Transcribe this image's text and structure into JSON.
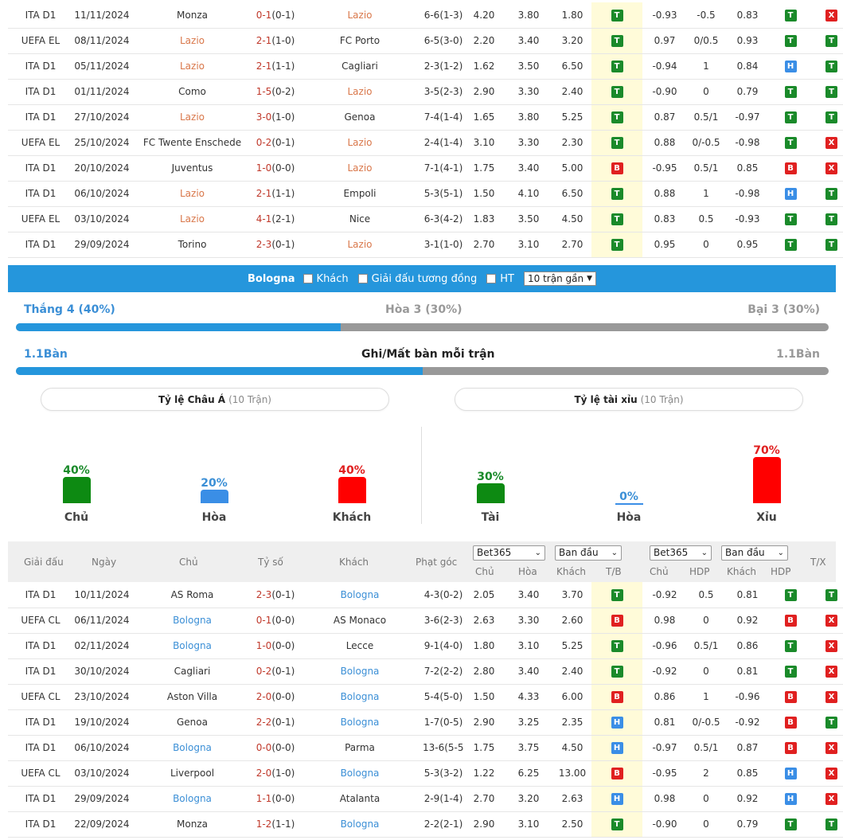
{
  "table1": {
    "rows": [
      {
        "league": "ITA D1",
        "date": "11/11/2024",
        "home": "Monza",
        "home_hl": false,
        "ft": "0-1",
        "ht": "(0-1)",
        "away": "Lazio",
        "away_hl": true,
        "corners": "6-6(1-3)",
        "o1": "4.20",
        "o2": "3.80",
        "o3": "1.80",
        "r1": "T",
        "h1": "-0.93",
        "h2": "-0.5",
        "h3": "0.83",
        "r2": "T",
        "r3": "X"
      },
      {
        "league": "UEFA EL",
        "date": "08/11/2024",
        "home": "Lazio",
        "home_hl": true,
        "ft": "2-1",
        "ht": "(1-0)",
        "away": "FC Porto",
        "away_hl": false,
        "corners": "6-5(3-0)",
        "o1": "2.20",
        "o2": "3.40",
        "o3": "3.20",
        "r1": "T",
        "h1": "0.97",
        "h2": "0/0.5",
        "h3": "0.93",
        "r2": "T",
        "r3": "T"
      },
      {
        "league": "ITA D1",
        "date": "05/11/2024",
        "home": "Lazio",
        "home_hl": true,
        "ft": "2-1",
        "ht": "(1-1)",
        "away": "Cagliari",
        "away_hl": false,
        "corners": "2-3(1-2)",
        "o1": "1.62",
        "o2": "3.50",
        "o3": "6.50",
        "r1": "T",
        "h1": "-0.94",
        "h2": "1",
        "h3": "0.84",
        "r2": "H",
        "r3": "T"
      },
      {
        "league": "ITA D1",
        "date": "01/11/2024",
        "home": "Como",
        "home_hl": false,
        "ft": "1-5",
        "ht": "(0-2)",
        "away": "Lazio",
        "away_hl": true,
        "corners": "3-5(2-3)",
        "o1": "2.90",
        "o2": "3.30",
        "o3": "2.40",
        "r1": "T",
        "h1": "-0.90",
        "h2": "0",
        "h3": "0.79",
        "r2": "T",
        "r3": "T"
      },
      {
        "league": "ITA D1",
        "date": "27/10/2024",
        "home": "Lazio",
        "home_hl": true,
        "ft": "3-0",
        "ht": "(1-0)",
        "away": "Genoa",
        "away_hl": false,
        "corners": "7-4(1-4)",
        "o1": "1.65",
        "o2": "3.80",
        "o3": "5.25",
        "r1": "T",
        "h1": "0.87",
        "h2": "0.5/1",
        "h3": "-0.97",
        "r2": "T",
        "r3": "T"
      },
      {
        "league": "UEFA EL",
        "date": "25/10/2024",
        "home": "FC Twente Enschede",
        "home_hl": false,
        "ft": "0-2",
        "ht": "(0-1)",
        "away": "Lazio",
        "away_hl": true,
        "corners": "2-4(1-4)",
        "o1": "3.10",
        "o2": "3.30",
        "o3": "2.30",
        "r1": "T",
        "h1": "0.88",
        "h2": "0/-0.5",
        "h3": "-0.98",
        "r2": "T",
        "r3": "X"
      },
      {
        "league": "ITA D1",
        "date": "20/10/2024",
        "home": "Juventus",
        "home_hl": false,
        "ft": "1-0",
        "ht": "(0-0)",
        "away": "Lazio",
        "away_hl": true,
        "corners": "7-1(4-1)",
        "o1": "1.75",
        "o2": "3.40",
        "o3": "5.00",
        "r1": "B",
        "h1": "-0.95",
        "h2": "0.5/1",
        "h3": "0.85",
        "r2": "B",
        "r3": "X"
      },
      {
        "league": "ITA D1",
        "date": "06/10/2024",
        "home": "Lazio",
        "home_hl": true,
        "ft": "2-1",
        "ht": "(1-1)",
        "away": "Empoli",
        "away_hl": false,
        "corners": "5-3(5-1)",
        "o1": "1.50",
        "o2": "4.10",
        "o3": "6.50",
        "r1": "T",
        "h1": "0.88",
        "h2": "1",
        "h3": "-0.98",
        "r2": "H",
        "r3": "T"
      },
      {
        "league": "UEFA EL",
        "date": "03/10/2024",
        "home": "Lazio",
        "home_hl": true,
        "ft": "4-1",
        "ht": "(2-1)",
        "away": "Nice",
        "away_hl": false,
        "corners": "6-3(4-2)",
        "o1": "1.83",
        "o2": "3.50",
        "o3": "4.50",
        "r1": "T",
        "h1": "0.83",
        "h2": "0.5",
        "h3": "-0.93",
        "r2": "T",
        "r3": "T"
      },
      {
        "league": "ITA D1",
        "date": "29/09/2024",
        "home": "Torino",
        "home_hl": false,
        "ft": "2-3",
        "ht": "(0-1)",
        "away": "Lazio",
        "away_hl": true,
        "corners": "3-1(1-0)",
        "o1": "2.70",
        "o2": "3.10",
        "o3": "2.70",
        "r1": "T",
        "h1": "0.95",
        "h2": "0",
        "h3": "0.95",
        "r2": "T",
        "r3": "T"
      }
    ]
  },
  "filter": {
    "team": "Bologna",
    "away_label": "Khách",
    "same_league_label": "Giải đấu tương đồng",
    "ht_label": "HT",
    "recent_select": "10 trận gần"
  },
  "summary": {
    "win": "Thắng 4 (40%)",
    "draw": "Hòa 3 (30%)",
    "loss": "Bại 3 (30%)",
    "win_fraction": 0.4,
    "goals_left": "1.1Bàn",
    "goals_title": "Ghi/Mất bàn mỗi trận",
    "goals_right": "1.1Bàn",
    "goals_fraction": 0.5
  },
  "asian": {
    "title": "Tỷ lệ Châu Á",
    "count": "(10 Trận)",
    "bars": [
      {
        "pct_text": "40%",
        "value": 40,
        "label": "Chủ",
        "color": "green"
      },
      {
        "pct_text": "20%",
        "value": 20,
        "label": "Hòa",
        "color": "blue"
      },
      {
        "pct_text": "40%",
        "value": 40,
        "label": "Khách",
        "color": "red"
      }
    ]
  },
  "overunder": {
    "title": "Tỷ lệ tài xỉu",
    "count": "(10 Trận)",
    "bars": [
      {
        "pct_text": "30%",
        "value": 30,
        "label": "Tài",
        "color": "green"
      },
      {
        "pct_text": "0%",
        "value": 0,
        "label": "Hòa",
        "color": "blue"
      },
      {
        "pct_text": "70%",
        "value": 70,
        "label": "Xỉu",
        "color": "red"
      }
    ]
  },
  "header2": {
    "league": "Giải đấu",
    "date": "Ngày",
    "home": "Chủ",
    "score": "Tỷ số",
    "away": "Khách",
    "corners": "Phạt góc",
    "bookmaker1": "Bet365",
    "opening1": "Ban đầu",
    "bookmaker2": "Bet365",
    "opening2": "Ban đầu",
    "sub_home": "Chủ",
    "sub_draw": "Hòa",
    "sub_away": "Khách",
    "sub_tb": "T/B",
    "sub_home2": "Chủ",
    "sub_hdp": "HDP",
    "sub_away2": "Khách",
    "sub_hdp2": "HDP",
    "tx": "T/X"
  },
  "table2": {
    "rows": [
      {
        "league": "ITA D1",
        "date": "10/11/2024",
        "home": "AS Roma",
        "home_hl": false,
        "ft": "2-3",
        "ht": "(0-1)",
        "away": "Bologna",
        "away_hl": true,
        "corners": "4-3(0-2)",
        "o1": "2.05",
        "o2": "3.40",
        "o3": "3.70",
        "r1": "T",
        "h1": "-0.92",
        "h2": "0.5",
        "h3": "0.81",
        "r2": "T",
        "r3": "T"
      },
      {
        "league": "UEFA CL",
        "date": "06/11/2024",
        "home": "Bologna",
        "home_hl": true,
        "ft": "0-1",
        "ht": "(0-0)",
        "away": "AS Monaco",
        "away_hl": false,
        "corners": "3-6(2-3)",
        "o1": "2.63",
        "o2": "3.30",
        "o3": "2.60",
        "r1": "B",
        "h1": "0.98",
        "h2": "0",
        "h3": "0.92",
        "r2": "B",
        "r3": "X"
      },
      {
        "league": "ITA D1",
        "date": "02/11/2024",
        "home": "Bologna",
        "home_hl": true,
        "ft": "1-0",
        "ht": "(0-0)",
        "away": "Lecce",
        "away_hl": false,
        "corners": "9-1(4-0)",
        "o1": "1.80",
        "o2": "3.10",
        "o3": "5.25",
        "r1": "T",
        "h1": "-0.96",
        "h2": "0.5/1",
        "h3": "0.86",
        "r2": "T",
        "r3": "X"
      },
      {
        "league": "ITA D1",
        "date": "30/10/2024",
        "home": "Cagliari",
        "home_hl": false,
        "ft": "0-2",
        "ht": "(0-1)",
        "away": "Bologna",
        "away_hl": true,
        "corners": "7-2(2-2)",
        "o1": "2.80",
        "o2": "3.40",
        "o3": "2.40",
        "r1": "T",
        "h1": "-0.92",
        "h2": "0",
        "h3": "0.81",
        "r2": "T",
        "r3": "X"
      },
      {
        "league": "UEFA CL",
        "date": "23/10/2024",
        "home": "Aston Villa",
        "home_hl": false,
        "ft": "2-0",
        "ht": "(0-0)",
        "away": "Bologna",
        "away_hl": true,
        "corners": "5-4(5-0)",
        "o1": "1.50",
        "o2": "4.33",
        "o3": "6.00",
        "r1": "B",
        "h1": "0.86",
        "h2": "1",
        "h3": "-0.96",
        "r2": "B",
        "r3": "X"
      },
      {
        "league": "ITA D1",
        "date": "19/10/2024",
        "home": "Genoa",
        "home_hl": false,
        "ft": "2-2",
        "ht": "(0-1)",
        "away": "Bologna",
        "away_hl": true,
        "corners": "1-7(0-5)",
        "o1": "2.90",
        "o2": "3.25",
        "o3": "2.35",
        "r1": "H",
        "h1": "0.81",
        "h2": "0/-0.5",
        "h3": "-0.92",
        "r2": "B",
        "r3": "T"
      },
      {
        "league": "ITA D1",
        "date": "06/10/2024",
        "home": "Bologna",
        "home_hl": true,
        "ft": "0-0",
        "ht": "(0-0)",
        "away": "Parma",
        "away_hl": false,
        "corners": "13-6(5-5)",
        "o1": "1.75",
        "o2": "3.75",
        "o3": "4.50",
        "r1": "H",
        "h1": "-0.97",
        "h2": "0.5/1",
        "h3": "0.87",
        "r2": "B",
        "r3": "X"
      },
      {
        "league": "UEFA CL",
        "date": "03/10/2024",
        "home": "Liverpool",
        "home_hl": false,
        "ft": "2-0",
        "ht": "(1-0)",
        "away": "Bologna",
        "away_hl": true,
        "corners": "5-3(3-2)",
        "o1": "1.22",
        "o2": "6.25",
        "o3": "13.00",
        "r1": "B",
        "h1": "-0.95",
        "h2": "2",
        "h3": "0.85",
        "r2": "H",
        "r3": "X"
      },
      {
        "league": "ITA D1",
        "date": "29/09/2024",
        "home": "Bologna",
        "home_hl": true,
        "ft": "1-1",
        "ht": "(0-0)",
        "away": "Atalanta",
        "away_hl": false,
        "corners": "2-9(1-4)",
        "o1": "2.70",
        "o2": "3.20",
        "o3": "2.63",
        "r1": "H",
        "h1": "0.98",
        "h2": "0",
        "h3": "0.92",
        "r2": "H",
        "r3": "X"
      },
      {
        "league": "ITA D1",
        "date": "22/09/2024",
        "home": "Monza",
        "home_hl": false,
        "ft": "1-2",
        "ht": "(1-1)",
        "away": "Bologna",
        "away_hl": true,
        "corners": "2-2(2-1)",
        "o1": "2.90",
        "o2": "3.10",
        "o3": "2.50",
        "r1": "T",
        "h1": "-0.90",
        "h2": "0",
        "h3": "0.79",
        "r2": "T",
        "r3": "T"
      }
    ]
  }
}
